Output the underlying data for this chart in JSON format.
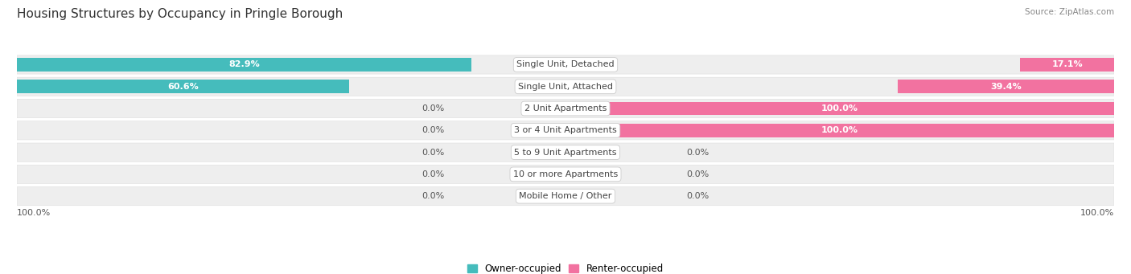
{
  "title": "Housing Structures by Occupancy in Pringle Borough",
  "source": "Source: ZipAtlas.com",
  "categories": [
    "Single Unit, Detached",
    "Single Unit, Attached",
    "2 Unit Apartments",
    "3 or 4 Unit Apartments",
    "5 to 9 Unit Apartments",
    "10 or more Apartments",
    "Mobile Home / Other"
  ],
  "owner_pct": [
    82.9,
    60.6,
    0.0,
    0.0,
    0.0,
    0.0,
    0.0
  ],
  "renter_pct": [
    17.1,
    39.4,
    100.0,
    100.0,
    0.0,
    0.0,
    0.0
  ],
  "owner_color": "#45BCBC",
  "renter_color": "#F272A0",
  "row_bg_even": "#EFEFEF",
  "row_bg_odd": "#F7F7F7",
  "title_fontsize": 11,
  "bar_height": 0.62,
  "legend_labels": [
    "Owner-occupied",
    "Renter-occupied"
  ],
  "note_small_owner": [
    2,
    3,
    4,
    5,
    6
  ],
  "note_small_renter": [
    4,
    5,
    6
  ]
}
